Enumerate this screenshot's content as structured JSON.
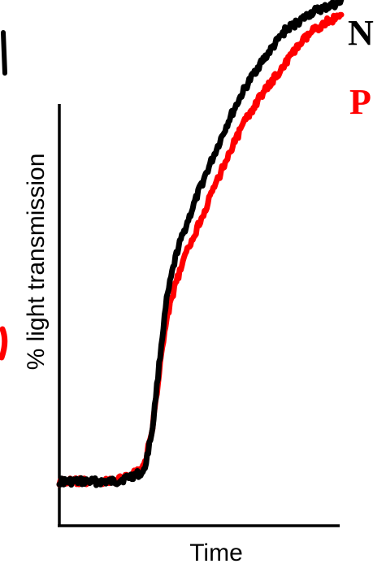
{
  "chart_data": {
    "type": "line",
    "title": "",
    "xlabel": "Time",
    "ylabel": "% light transmission",
    "xlim": [
      0,
      100
    ],
    "ylim": [
      0,
      100
    ],
    "grid": false,
    "legend_placement": "top-right",
    "series": [
      {
        "name": "N",
        "color": "#000000",
        "x": [
          0,
          10,
          20,
          30,
          33,
          36,
          38,
          40,
          42,
          45,
          50,
          55,
          60,
          65,
          70,
          75,
          80,
          85,
          90,
          95,
          100
        ],
        "y": [
          4,
          4,
          4,
          6,
          15,
          32,
          42,
          48,
          53,
          58,
          66,
          73,
          80,
          86,
          91,
          95,
          99,
          101,
          103,
          104,
          105
        ]
      },
      {
        "name": "P",
        "color": "#ff0000",
        "x": [
          0,
          10,
          20,
          30,
          33,
          36,
          38,
          40,
          42,
          45,
          50,
          55,
          60,
          65,
          70,
          75,
          80,
          85,
          90,
          95,
          100
        ],
        "y": [
          4,
          4,
          4,
          7,
          15,
          30,
          38,
          43,
          47,
          52,
          59,
          66,
          73,
          79,
          84,
          88,
          92,
          96,
          99,
          101,
          102
        ]
      }
    ]
  }
}
